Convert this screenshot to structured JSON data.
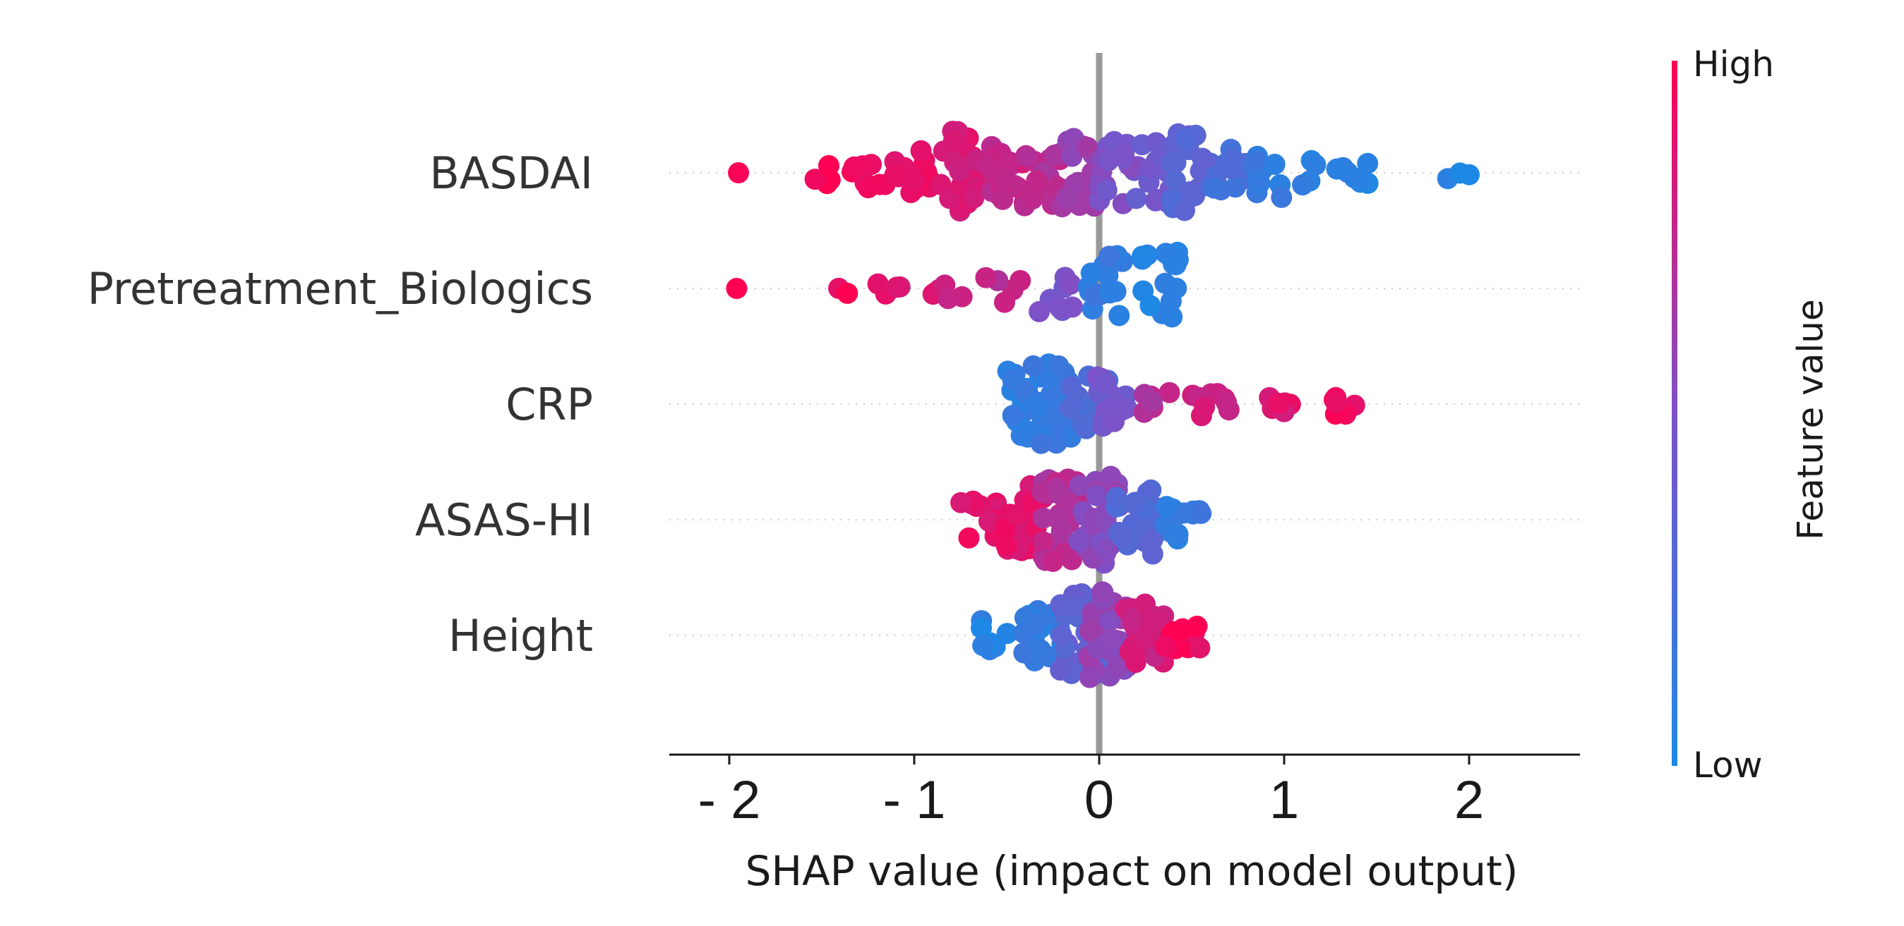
{
  "chart_data": {
    "type": "scatter",
    "subtype": "beeswarm",
    "title": "",
    "xlabel": "SHAP value (impact on model output)",
    "xlim": [
      -2.35,
      2.6
    ],
    "xticks": [
      -2,
      -1,
      0,
      1,
      2
    ],
    "xtick_labels": [
      "- 2",
      "- 1",
      "0",
      "1",
      "2"
    ],
    "zero_line": true,
    "grid": false,
    "features": [
      {
        "name": "BASDAI",
        "clusters": [
          {
            "x": -1.95,
            "n": 1,
            "spread": 0.05,
            "c": 1.0
          },
          {
            "x": -1.5,
            "n": 4,
            "spread": 0.22,
            "c": 0.98
          },
          {
            "x": -1.25,
            "n": 8,
            "spread": 0.32,
            "c": 0.95
          },
          {
            "x": -1.0,
            "n": 14,
            "spread": 0.45,
            "c": 0.92
          },
          {
            "x": -0.75,
            "n": 26,
            "spread": 0.85,
            "c": 0.85
          },
          {
            "x": -0.5,
            "n": 20,
            "spread": 0.7,
            "c": 0.78
          },
          {
            "x": -0.3,
            "n": 18,
            "spread": 0.65,
            "c": 0.72
          },
          {
            "x": -0.1,
            "n": 20,
            "spread": 0.7,
            "c": 0.62
          },
          {
            "x": 0.1,
            "n": 20,
            "spread": 0.65,
            "c": 0.5
          },
          {
            "x": 0.3,
            "n": 18,
            "spread": 0.65,
            "c": 0.42
          },
          {
            "x": 0.5,
            "n": 22,
            "spread": 0.8,
            "c": 0.32
          },
          {
            "x": 0.7,
            "n": 12,
            "spread": 0.5,
            "c": 0.22
          },
          {
            "x": 0.9,
            "n": 10,
            "spread": 0.5,
            "c": 0.12
          },
          {
            "x": 1.1,
            "n": 4,
            "spread": 0.25,
            "c": 0.06
          },
          {
            "x": 1.35,
            "n": 7,
            "spread": 0.25,
            "c": 0.04
          },
          {
            "x": 1.9,
            "n": 3,
            "spread": 0.15,
            "c": 0.02
          }
        ]
      },
      {
        "name": "Pretreatment_Biologics",
        "clusters": [
          {
            "x": -1.96,
            "n": 1,
            "spread": 0.05,
            "c": 1.0
          },
          {
            "x": -1.4,
            "n": 2,
            "spread": 0.12,
            "c": 0.95
          },
          {
            "x": -1.1,
            "n": 4,
            "spread": 0.2,
            "c": 0.88
          },
          {
            "x": -0.8,
            "n": 6,
            "spread": 0.3,
            "c": 0.82
          },
          {
            "x": -0.52,
            "n": 5,
            "spread": 0.3,
            "c": 0.75
          },
          {
            "x": -0.22,
            "n": 8,
            "spread": 0.5,
            "c": 0.48
          },
          {
            "x": 0.05,
            "n": 16,
            "spread": 0.7,
            "c": 0.12
          },
          {
            "x": 0.34,
            "n": 16,
            "spread": 0.75,
            "c": 0.06
          }
        ]
      },
      {
        "name": "CRP",
        "clusters": [
          {
            "x": -0.4,
            "n": 18,
            "spread": 0.7,
            "c": 0.1
          },
          {
            "x": -0.25,
            "n": 30,
            "spread": 0.85,
            "c": 0.12
          },
          {
            "x": -0.05,
            "n": 18,
            "spread": 0.6,
            "c": 0.25
          },
          {
            "x": 0.05,
            "n": 14,
            "spread": 0.55,
            "c": 0.45
          },
          {
            "x": 0.3,
            "n": 6,
            "spread": 0.25,
            "c": 0.72
          },
          {
            "x": 0.6,
            "n": 10,
            "spread": 0.25,
            "c": 0.8
          },
          {
            "x": 0.95,
            "n": 6,
            "spread": 0.2,
            "c": 0.88
          },
          {
            "x": 1.3,
            "n": 6,
            "spread": 0.22,
            "c": 0.95
          }
        ]
      },
      {
        "name": "ASAS-HI",
        "clusters": [
          {
            "x": -0.65,
            "n": 12,
            "spread": 0.4,
            "c": 0.9
          },
          {
            "x": -0.4,
            "n": 24,
            "spread": 0.7,
            "c": 0.88
          },
          {
            "x": -0.2,
            "n": 30,
            "spread": 0.85,
            "c": 0.72
          },
          {
            "x": 0.0,
            "n": 34,
            "spread": 0.95,
            "c": 0.55
          },
          {
            "x": 0.2,
            "n": 22,
            "spread": 0.7,
            "c": 0.3
          },
          {
            "x": 0.45,
            "n": 12,
            "spread": 0.4,
            "c": 0.12
          }
        ]
      },
      {
        "name": "Height",
        "clusters": [
          {
            "x": -0.55,
            "n": 8,
            "spread": 0.3,
            "c": 0.05
          },
          {
            "x": -0.3,
            "n": 18,
            "spread": 0.55,
            "c": 0.1
          },
          {
            "x": -0.1,
            "n": 28,
            "spread": 0.85,
            "c": 0.35
          },
          {
            "x": 0.05,
            "n": 30,
            "spread": 0.95,
            "c": 0.58
          },
          {
            "x": 0.25,
            "n": 22,
            "spread": 0.65,
            "c": 0.82
          },
          {
            "x": 0.45,
            "n": 10,
            "spread": 0.4,
            "c": 0.95
          }
        ]
      }
    ],
    "colorbar": {
      "high_label": "High",
      "low_label": "Low",
      "title": "Feature value",
      "low_color": "#1E88E5",
      "high_color": "#FF0052"
    }
  },
  "colors": {
    "zero_line": "#999999",
    "guide_dots": "#cccccc",
    "axis": "#1a1a1a"
  }
}
